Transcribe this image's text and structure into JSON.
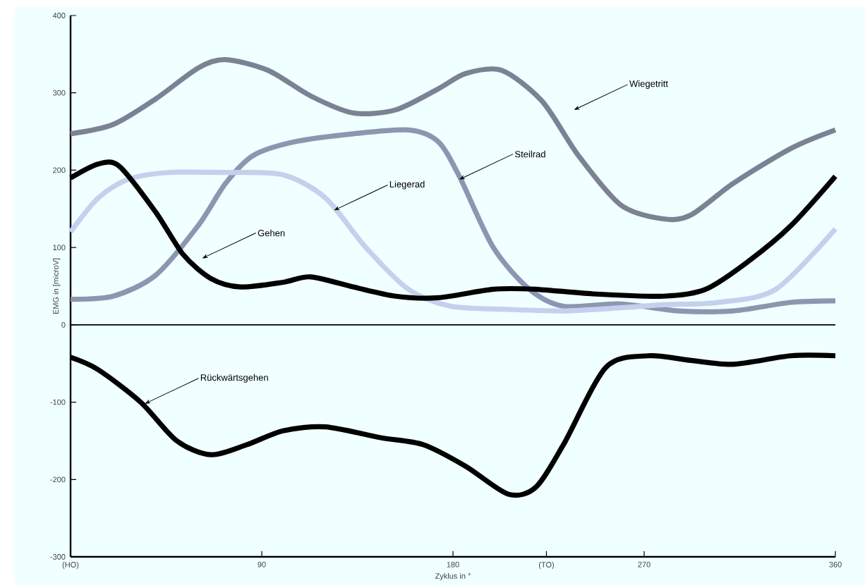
{
  "chart_data": {
    "type": "line",
    "xlabel": "Zyklus in °",
    "ylabel": "EMG in [microV]",
    "xlim": [
      0,
      360
    ],
    "ylim": [
      -300,
      400
    ],
    "xticks": [
      {
        "value": 0,
        "label": "(HO)"
      },
      90,
      180,
      {
        "value": 224,
        "label": "(TO)"
      },
      270,
      360
    ],
    "yticks": [
      -300,
      -200,
      -100,
      0,
      100,
      200,
      300,
      400
    ],
    "grid": false,
    "marker": "none",
    "line_style": "solid",
    "ref_lines": [
      {
        "axis": "y",
        "value": 0,
        "color": "#000000"
      }
    ],
    "series": [
      {
        "color": "#7a8294",
        "x": [
          0,
          20,
          40,
          60,
          73,
          93,
          113,
          133,
          153,
          173,
          186,
          203,
          222,
          239,
          259,
          279,
          292,
          312,
          339,
          360
        ],
        "values": [
          247,
          259,
          292,
          332,
          343,
          329,
          296,
          274,
          278,
          305,
          325,
          329,
          289,
          219,
          155,
          137,
          142,
          183,
          228,
          252
        ]
      },
      {
        "color": "#8d96b0",
        "x": [
          0,
          20,
          40,
          60,
          73,
          86,
          106,
          133,
          159,
          173,
          183,
          199,
          216,
          232,
          259,
          286,
          312,
          339,
          360
        ],
        "values": [
          33,
          37,
          64,
          128,
          183,
          219,
          237,
          247,
          252,
          237,
          192,
          100,
          46,
          24,
          27,
          18,
          18,
          29,
          31
        ]
      },
      {
        "color": "#c5d0ee",
        "x": [
          0,
          13,
          27,
          46,
          73,
          100,
          120,
          139,
          159,
          179,
          206,
          232,
          259,
          279,
          305,
          332,
          360
        ],
        "values": [
          120,
          164,
          188,
          197,
          197,
          194,
          164,
          100,
          46,
          24,
          20,
          18,
          22,
          26,
          29,
          46,
          124
        ]
      },
      {
        "color": "#000000",
        "x": [
          0,
          13,
          23,
          40,
          53,
          66,
          80,
          100,
          113,
          133,
          153,
          173,
          199,
          219,
          246,
          279,
          299,
          319,
          339,
          360
        ],
        "values": [
          190,
          208,
          205,
          146,
          91,
          60,
          49,
          55,
          62,
          49,
          37,
          35,
          46,
          46,
          40,
          37,
          46,
          82,
          128,
          192
        ]
      },
      {
        "color": "#000000",
        "x": [
          0,
          13,
          33,
          50,
          66,
          83,
          100,
          120,
          146,
          166,
          186,
          206,
          219,
          232,
          252,
          272,
          292,
          312,
          339,
          360
        ],
        "values": [
          -42,
          -58,
          -100,
          -150,
          -168,
          -155,
          -137,
          -132,
          -146,
          -155,
          -183,
          -219,
          -210,
          -155,
          -55,
          -40,
          -46,
          -51,
          -40,
          -40
        ]
      }
    ],
    "annotations": [
      {
        "text": "Wiegetritt",
        "x": 237,
        "y": 278
      },
      {
        "text": "Steilrad",
        "x": 183,
        "y": 188
      },
      {
        "text": "Liegerad",
        "x": 124,
        "y": 148
      },
      {
        "text": "Gehen",
        "x": 62,
        "y": 86
      },
      {
        "text": "Rückwärtsgehen",
        "x": 35,
        "y": -102
      }
    ]
  }
}
